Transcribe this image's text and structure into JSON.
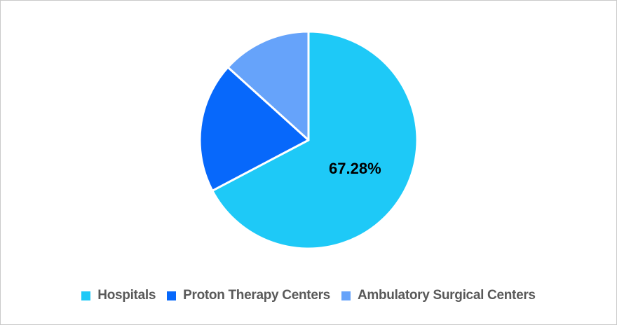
{
  "chart_data": {
    "type": "pie",
    "title": "",
    "categories": [
      "Hospitals",
      "Proton Therapy Centers",
      "Ambulatory Surgical Centers"
    ],
    "values": [
      67.28,
      19.42,
      13.3
    ],
    "data_labels": [
      "67.28%",
      "",
      ""
    ],
    "colors": [
      "#1EC9F7",
      "#0768FB",
      "#66A3FA"
    ],
    "start_angle_deg": 0,
    "direction": "clockwise",
    "slice_separator_color": "#FFFFFF",
    "data_label_color": "#000000",
    "legend_position": "bottom",
    "legend_text_color": "#595959",
    "grid": false
  }
}
